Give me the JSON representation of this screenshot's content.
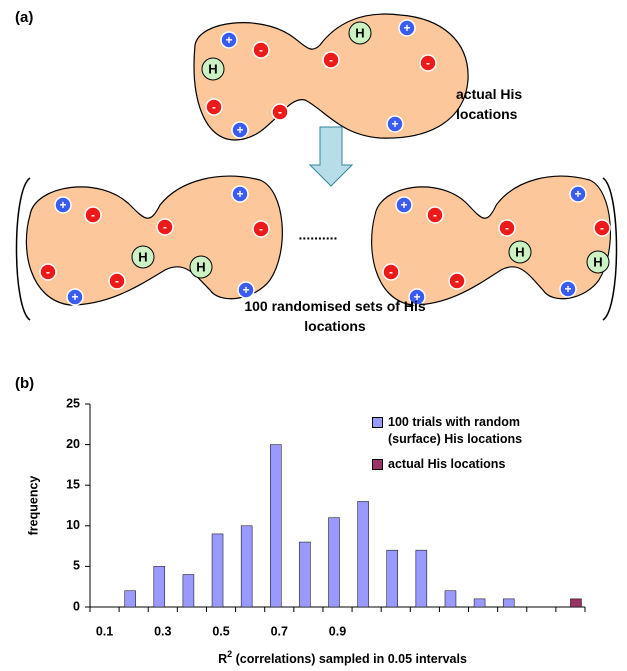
{
  "panel_a": {
    "label": "(a)",
    "actual_label": "actual His locations",
    "random_label": "100 randomised sets of His locations",
    "ellipsis": "..........",
    "symbols": {
      "plus": "+",
      "minus": "-",
      "his": "H"
    }
  },
  "panel_b": {
    "label": "(b)"
  },
  "chart_data": {
    "type": "bar",
    "categories": [
      "0.1",
      null,
      "0.3",
      null,
      "0.5",
      null,
      "0.7",
      null,
      "0.9",
      null,
      null,
      null,
      null,
      null,
      null,
      null,
      null
    ],
    "series": [
      {
        "name": "100 trials with random (surface) His locations",
        "color": "#9999ff",
        "values": [
          0,
          2,
          5,
          4,
          9,
          10,
          20,
          8,
          11,
          13,
          7,
          7,
          2,
          1,
          1,
          0,
          0
        ]
      },
      {
        "name": "actual His locations",
        "color": "#993366",
        "values": [
          0,
          0,
          0,
          0,
          0,
          0,
          0,
          0,
          0,
          0,
          0,
          0,
          0,
          0,
          0,
          0,
          1
        ]
      }
    ],
    "y_label": "frequency",
    "x_label": [
      "R",
      "2",
      " (correlations) sampled in 0.05 intervals"
    ],
    "ylim": [
      0,
      25
    ],
    "yticks": [
      0,
      5,
      10,
      15,
      20,
      25
    ]
  }
}
